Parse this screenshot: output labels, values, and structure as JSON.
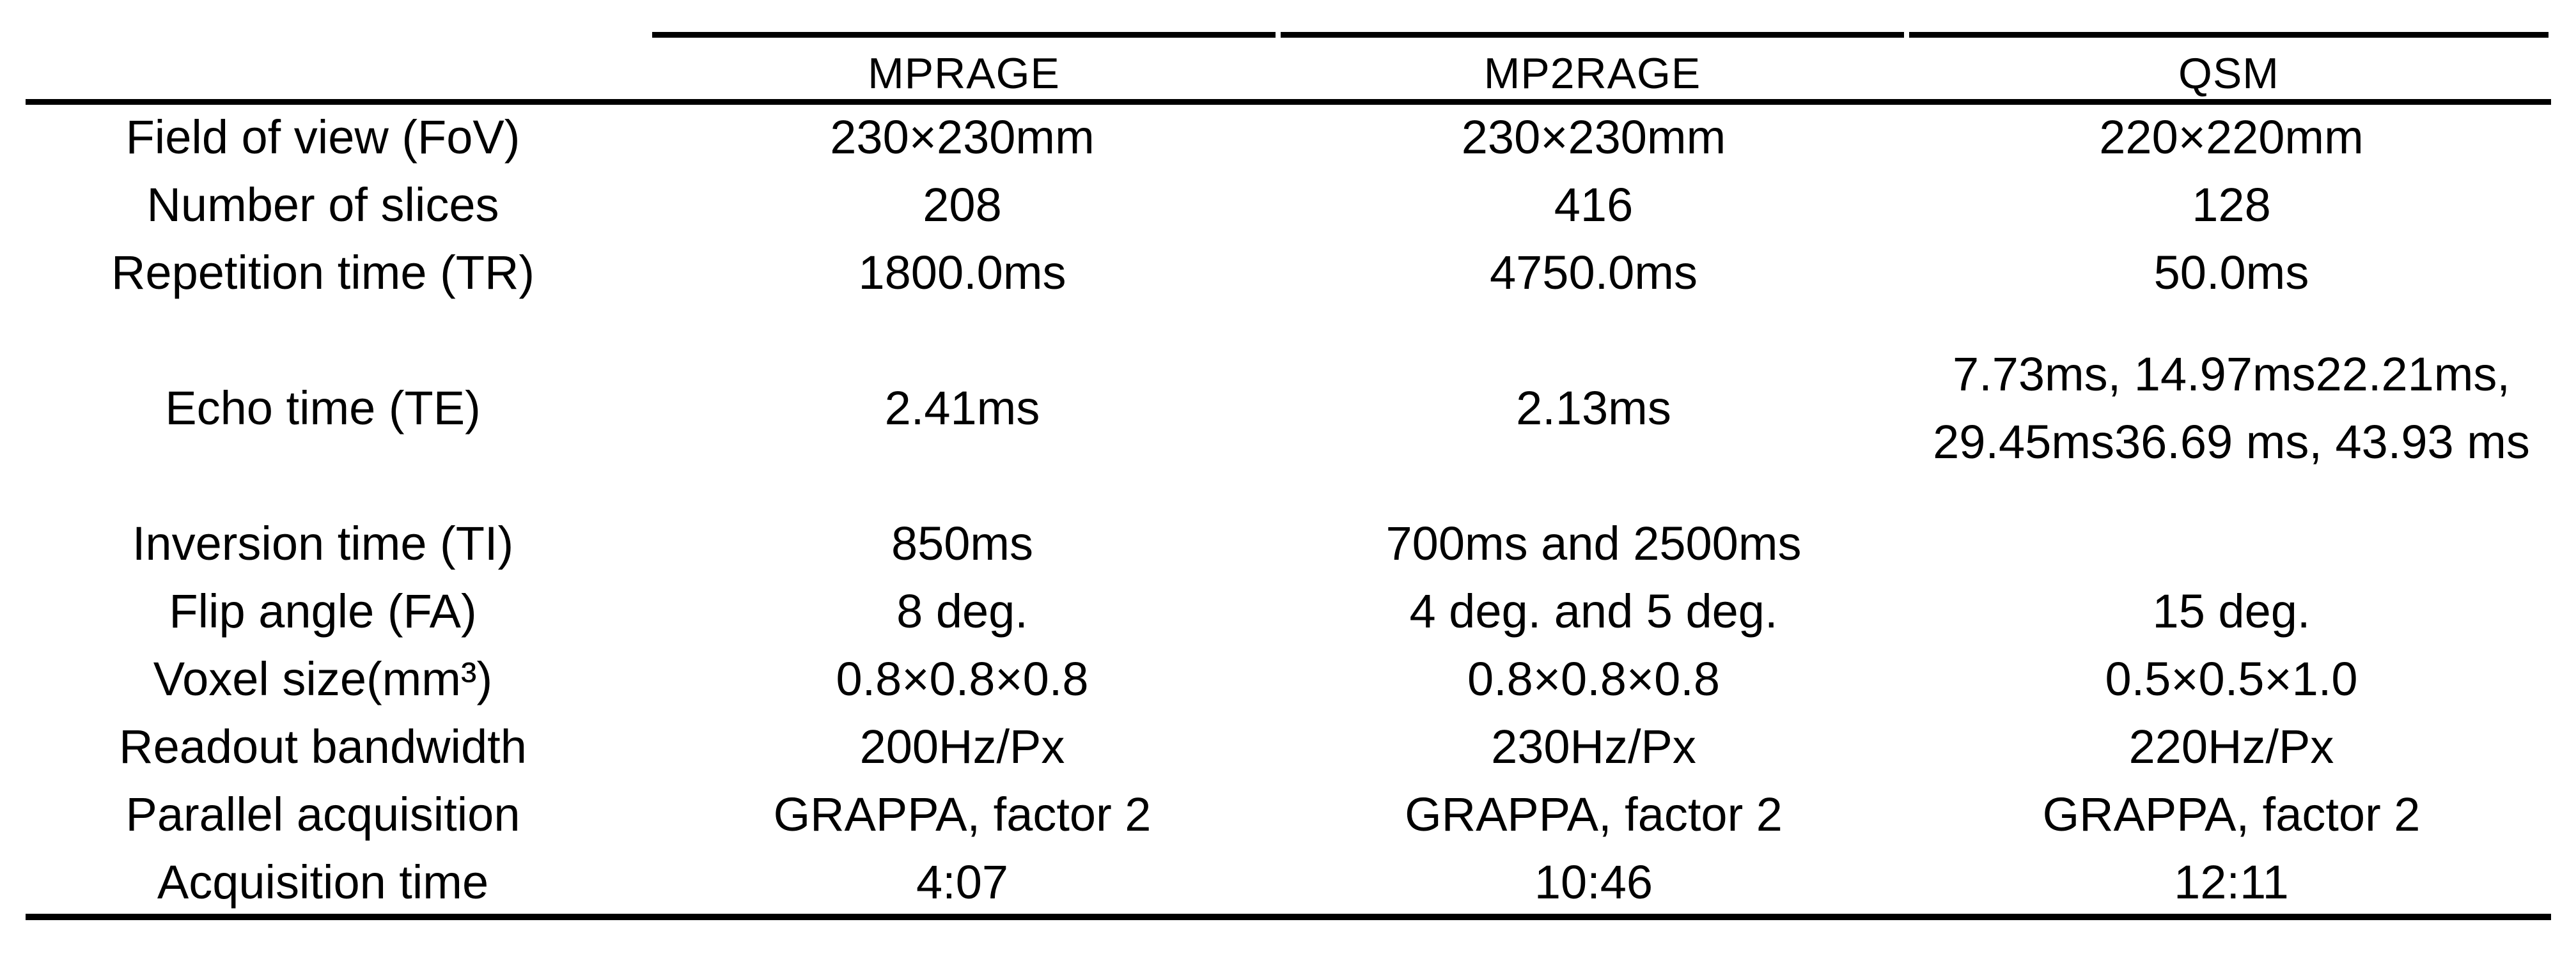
{
  "table": {
    "columns": [
      "",
      "MPRAGE",
      "MP2RAGE",
      "QSM"
    ],
    "rows": [
      {
        "label": "Field of view (FoV)",
        "cells": [
          "230×230mm",
          "230×230mm",
          "220×220mm"
        ]
      },
      {
        "label": "Number of slices",
        "cells": [
          "208",
          "416",
          "128"
        ]
      },
      {
        "label": "Repetition time (TR)",
        "cells": [
          "1800.0ms",
          "4750.0ms",
          "50.0ms"
        ]
      },
      {
        "label": "Echo time (TE)",
        "cells": [
          "2.41ms",
          "2.13ms",
          "7.73ms, 14.97ms22.21ms, 29.45ms36.69 ms, 43.93 ms"
        ]
      },
      {
        "label": "Inversion time (TI)",
        "cells": [
          "850ms",
          "700ms and 2500ms",
          ""
        ]
      },
      {
        "label": "Flip angle (FA)",
        "cells": [
          "8 deg.",
          "4 deg. and 5 deg.",
          "15 deg."
        ]
      },
      {
        "label": "Voxel size(mm³)",
        "cells": [
          "0.8×0.8×0.8",
          "0.8×0.8×0.8",
          "0.5×0.5×1.0"
        ]
      },
      {
        "label": "Readout bandwidth",
        "cells": [
          "200Hz/Px",
          "230Hz/Px",
          "220Hz/Px"
        ]
      },
      {
        "label": "Parallel acquisition",
        "cells": [
          "GRAPPA, factor 2",
          "GRAPPA, factor 2",
          "GRAPPA, factor 2"
        ]
      },
      {
        "label": "Acquisition time",
        "cells": [
          "4:07",
          "10:46",
          "12:11"
        ]
      }
    ]
  }
}
